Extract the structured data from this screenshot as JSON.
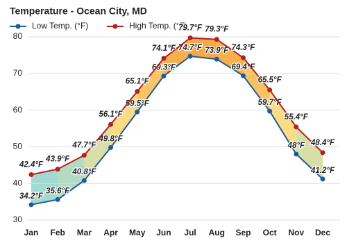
{
  "chart_data": {
    "type": "line",
    "title": "Temperature - Ocean City, MD",
    "categories": [
      "Jan",
      "Feb",
      "Mar",
      "Apr",
      "May",
      "Jun",
      "Jul",
      "Aug",
      "Sep",
      "Oct",
      "Nov",
      "Dec"
    ],
    "series": [
      {
        "name": "Low Temp. (°F)",
        "color": "#1f5b99",
        "values": [
          34.2,
          35.6,
          40.8,
          49.8,
          59.5,
          69.3,
          74.7,
          73.9,
          69.4,
          59.7,
          48,
          41.2
        ],
        "value_labels": [
          "34.2°F",
          "35.6°F",
          "40.8°F",
          "49.8°F",
          "59.5°F",
          "69.3°F",
          "74.7°F",
          "73.9°F",
          "69.4°F",
          "59.7°F",
          "48°F",
          "41.2°F"
        ]
      },
      {
        "name": "High Temp. (°F)",
        "color": "#b22222",
        "values": [
          42.4,
          43.9,
          47.7,
          56.1,
          65.1,
          74.1,
          79.7,
          79.3,
          74.3,
          65.5,
          55.4,
          48.4
        ],
        "value_labels": [
          "42.4°F",
          "43.9°F",
          "47.7°F",
          "56.1°F",
          "65.1°F",
          "74.1°F",
          "79.7°F",
          "79.3°F",
          "74.3°F",
          "65.5°F",
          "55.4°F",
          "48.4°F"
        ]
      }
    ],
    "ylim": [
      30,
      80
    ],
    "yticks": [
      30,
      40,
      50,
      60,
      70,
      80
    ],
    "grid": true
  }
}
